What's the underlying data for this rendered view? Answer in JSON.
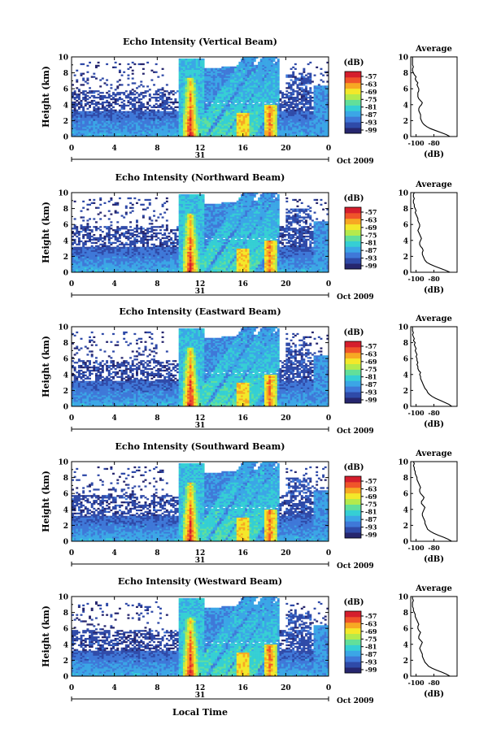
{
  "panels": [
    {
      "title": "Echo Intensity (Vertical Beam)",
      "avg_title": "Average",
      "seed": 1,
      "profile": [
        -62,
        -66,
        -72,
        -78,
        -84,
        -88,
        -91,
        -93,
        -94,
        -95,
        -95,
        -95,
        -96,
        -97,
        -97,
        -96,
        -94,
        -93,
        -95,
        -97,
        -98,
        -98,
        -98,
        -97,
        -97,
        -98,
        -99,
        -98,
        -100,
        -101,
        -100,
        -102,
        -103,
        -104,
        -104,
        -103,
        -104,
        -104,
        -104,
        -104,
        -104
      ]
    },
    {
      "title": "Echo Intensity (Northward Beam)",
      "avg_title": "Average",
      "seed": 2,
      "profile": [
        -62,
        -67,
        -73,
        -79,
        -84,
        -88,
        -90,
        -91,
        -92,
        -93,
        -93,
        -92,
        -93,
        -95,
        -96,
        -96,
        -95,
        -94,
        -95,
        -96,
        -97,
        -98,
        -97,
        -96,
        -96,
        -97,
        -98,
        -98,
        -99,
        -100,
        -101,
        -100,
        -101,
        -102,
        -102,
        -103,
        -103,
        -102,
        -103,
        -103,
        -102
      ]
    },
    {
      "title": "Echo Intensity (Eastward Beam)",
      "avg_title": "Average",
      "seed": 3,
      "profile": [
        -60,
        -63,
        -68,
        -73,
        -78,
        -82,
        -85,
        -87,
        -88,
        -90,
        -91,
        -92,
        -93,
        -94,
        -95,
        -95,
        -96,
        -95,
        -97,
        -98,
        -98,
        -99,
        -98,
        -99,
        -99,
        -100,
        -99,
        -100,
        -101,
        -100,
        -101,
        -102,
        -101,
        -103,
        -102,
        -103,
        -104,
        -103,
        -104,
        -104,
        -104
      ]
    },
    {
      "title": "Echo Intensity (Southward Beam)",
      "avg_title": "Average",
      "seed": 4,
      "profile": [
        -60,
        -64,
        -69,
        -75,
        -80,
        -84,
        -87,
        -88,
        -89,
        -90,
        -90,
        -91,
        -92,
        -93,
        -93,
        -92,
        -91,
        -90,
        -92,
        -94,
        -94,
        -92,
        -91,
        -93,
        -95,
        -96,
        -96,
        -95,
        -96,
        -97,
        -98,
        -99,
        -99,
        -100,
        -101,
        -101,
        -102,
        -102,
        -103,
        -102,
        -103
      ]
    },
    {
      "title": "Echo Intensity (Westward Beam)",
      "avg_title": "Average",
      "seed": 5,
      "profile": [
        -62,
        -66,
        -71,
        -77,
        -82,
        -86,
        -88,
        -90,
        -91,
        -92,
        -93,
        -93,
        -94,
        -95,
        -96,
        -95,
        -94,
        -93,
        -95,
        -97,
        -97,
        -96,
        -95,
        -97,
        -98,
        -98,
        -97,
        -98,
        -99,
        -100,
        -101,
        -101,
        -102,
        -103,
        -103,
        -104,
        -104,
        -104,
        -103,
        -104,
        -104
      ]
    }
  ],
  "y_label": "Height (km)",
  "y_ticks": [
    "0",
    "2",
    "4",
    "6",
    "8",
    "10"
  ],
  "x_ticks": [
    "0",
    "4",
    "8",
    "12",
    "16",
    "20",
    "0"
  ],
  "date_day": "31",
  "date_label": "Oct 2009",
  "x_title": "Local Time",
  "avg_x_ticks": [
    "-100",
    "-80"
  ],
  "avg_unit": "(dB)",
  "cbar_unit": "(dB)",
  "cbar_ticks": [
    "-57",
    "-63",
    "-69",
    "-75",
    "-81",
    "-87",
    "-93",
    "-99"
  ],
  "chart_data": {
    "type": "heatmap",
    "x_unit": "hour (local time)",
    "xlim": [
      0,
      24
    ],
    "ylim": [
      0,
      10
    ],
    "colorbar_range": [
      -102,
      -54
    ],
    "avg_xlim": [
      -106,
      -54
    ],
    "avg_heights_km": [
      0,
      0.25,
      0.5,
      0.75,
      1,
      1.25,
      1.5,
      1.75,
      2,
      2.25,
      2.5,
      2.75,
      3,
      3.25,
      3.5,
      3.75,
      4,
      4.25,
      4.5,
      4.75,
      5,
      5.25,
      5.5,
      5.75,
      6,
      6.25,
      6.5,
      6.75,
      7,
      7.25,
      7.5,
      7.75,
      8,
      8.25,
      8.5,
      8.75,
      9,
      9.25,
      9.5,
      9.75,
      10
    ],
    "colors": [
      "#26266e",
      "#2f4aa8",
      "#3f78d8",
      "#3ba6e6",
      "#35cfd4",
      "#62df9a",
      "#b4ea4c",
      "#f3e82a",
      "#f7a823",
      "#f0542a",
      "#d51e2d"
    ]
  }
}
